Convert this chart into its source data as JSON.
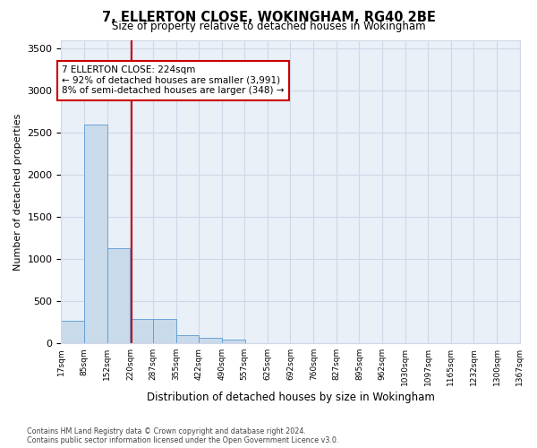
{
  "title": "7, ELLERTON CLOSE, WOKINGHAM, RG40 2BE",
  "subtitle": "Size of property relative to detached houses in Wokingham",
  "xlabel": "Distribution of detached houses by size in Wokingham",
  "ylabel": "Number of detached properties",
  "bar_color": "#c9daea",
  "bar_edge_color": "#5b9bd5",
  "grid_color": "#d0d8e8",
  "background_color": "#eaf0f8",
  "annotation_line_color": "#cc0000",
  "annotation_box_edge": "#cc0000",
  "annotation_line1": "7 ELLERTON CLOSE: 224sqm",
  "annotation_line2": "← 92% of detached houses are smaller (3,991)",
  "annotation_line3": "8% of semi-detached houses are larger (348) →",
  "property_size": 224,
  "bin_edges": [
    17,
    85,
    152,
    220,
    287,
    355,
    422,
    490,
    557,
    625,
    692,
    760,
    827,
    895,
    962,
    1030,
    1097,
    1165,
    1232,
    1300,
    1367
  ],
  "bin_labels": [
    "17sqm",
    "85sqm",
    "152sqm",
    "220sqm",
    "287sqm",
    "355sqm",
    "422sqm",
    "490sqm",
    "557sqm",
    "625sqm",
    "692sqm",
    "760sqm",
    "827sqm",
    "895sqm",
    "962sqm",
    "1030sqm",
    "1097sqm",
    "1165sqm",
    "1232sqm",
    "1300sqm",
    "1367sqm"
  ],
  "counts": [
    270,
    2600,
    1130,
    290,
    290,
    100,
    60,
    40,
    0,
    0,
    0,
    0,
    0,
    0,
    0,
    0,
    0,
    0,
    0,
    0
  ],
  "ylim": [
    0,
    3600
  ],
  "yticks": [
    0,
    500,
    1000,
    1500,
    2000,
    2500,
    3000,
    3500
  ],
  "footer": "Contains HM Land Registry data © Crown copyright and database right 2024.\nContains public sector information licensed under the Open Government Licence v3.0."
}
